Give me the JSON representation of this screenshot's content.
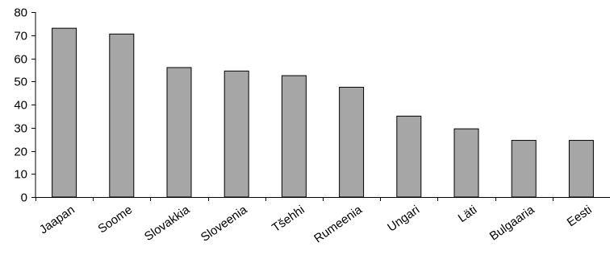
{
  "chart_data": {
    "type": "bar",
    "categories": [
      "Jaapan",
      "Soome",
      "Slovakkia",
      "Sloveenia",
      "Tšehhi",
      "Rumeenia",
      "Ungari",
      "Läti",
      "Bulgaaria",
      "Eesti"
    ],
    "values": [
      73,
      70.5,
      56,
      54.5,
      52.5,
      47.5,
      35,
      29.5,
      24.5,
      24.5
    ],
    "yticks": [
      "0",
      "10",
      "20",
      "30",
      "40",
      "50",
      "60",
      "70",
      "80"
    ],
    "ylim": [
      0,
      80
    ],
    "grid": false,
    "legend": "none",
    "bar_color": "#a6a6a6",
    "bar_stroke": "#000000"
  }
}
